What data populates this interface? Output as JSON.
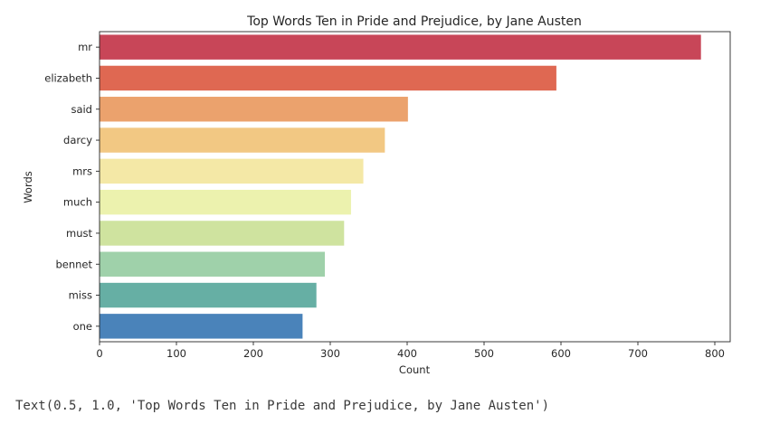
{
  "chart_data": {
    "type": "bar",
    "orientation": "horizontal",
    "title": "Top Words Ten in Pride and Prejudice, by Jane Austen",
    "xlabel": "Count",
    "ylabel": "Words",
    "xlim": [
      0,
      820
    ],
    "xticks": [
      0,
      100,
      200,
      300,
      400,
      500,
      600,
      700,
      800
    ],
    "grid": false,
    "palette": "Spectral",
    "categories": [
      "mr",
      "elizabeth",
      "said",
      "darcy",
      "mrs",
      "much",
      "must",
      "bennet",
      "miss",
      "one"
    ],
    "values": [
      782,
      594,
      401,
      371,
      343,
      327,
      318,
      293,
      282,
      264
    ],
    "colors": [
      "#c84658",
      "#df6852",
      "#eba26d",
      "#f2c883",
      "#f4e8a6",
      "#ecf2ae",
      "#cfe39f",
      "#9fd1aa",
      "#66afa4",
      "#4a83ba"
    ]
  },
  "output": {
    "text": "Text(0.5, 1.0, 'Top Words Ten in Pride and Prejudice, by Jane Austen')"
  }
}
